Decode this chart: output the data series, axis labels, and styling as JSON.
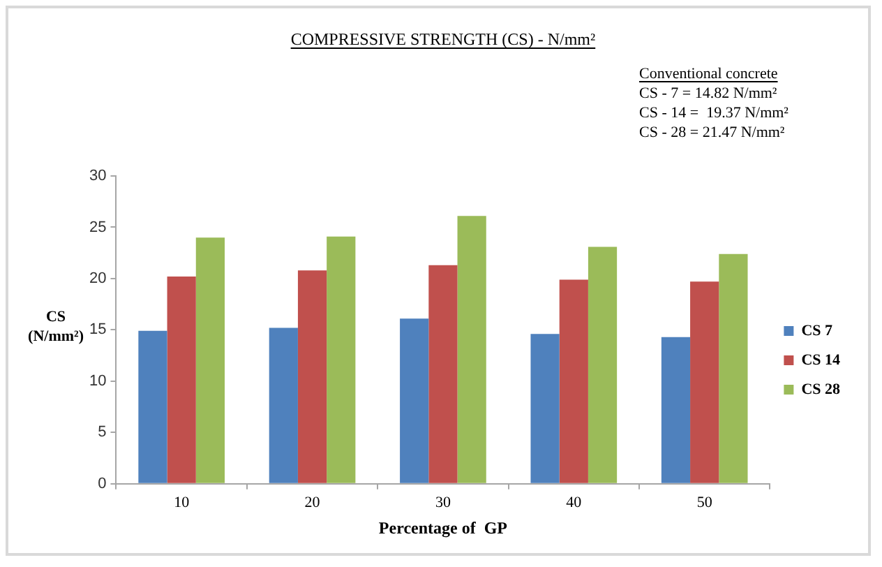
{
  "chart_data": {
    "type": "bar",
    "title": "COMPRESSIVE STRENGTH (CS) - N/mm²",
    "xlabel": "Percentage of  GP",
    "ylabel": "CS (N/mm²)",
    "annotations": [
      "Conventional concrete",
      "CS - 7 = 14.82 N/mm²",
      "CS - 14 =  19.37 N/mm²",
      "CS - 28 = 21.47 N/mm²"
    ],
    "categories": [
      "10",
      "20",
      "30",
      "40",
      "50"
    ],
    "series": [
      {
        "name": "CS 7",
        "color": "#4f81bd",
        "values": [
          14.9,
          15.2,
          16.1,
          14.6,
          14.3
        ]
      },
      {
        "name": "CS 14",
        "color": "#c0504d",
        "values": [
          20.2,
          20.8,
          21.3,
          19.9,
          19.7
        ]
      },
      {
        "name": "CS 28",
        "color": "#9bbb59",
        "values": [
          24.0,
          24.1,
          26.1,
          23.1,
          22.4
        ]
      }
    ],
    "ylim": [
      0,
      30
    ],
    "yticks": [
      0,
      5,
      10,
      15,
      20,
      25,
      30
    ],
    "grid": false,
    "legend": "right"
  }
}
